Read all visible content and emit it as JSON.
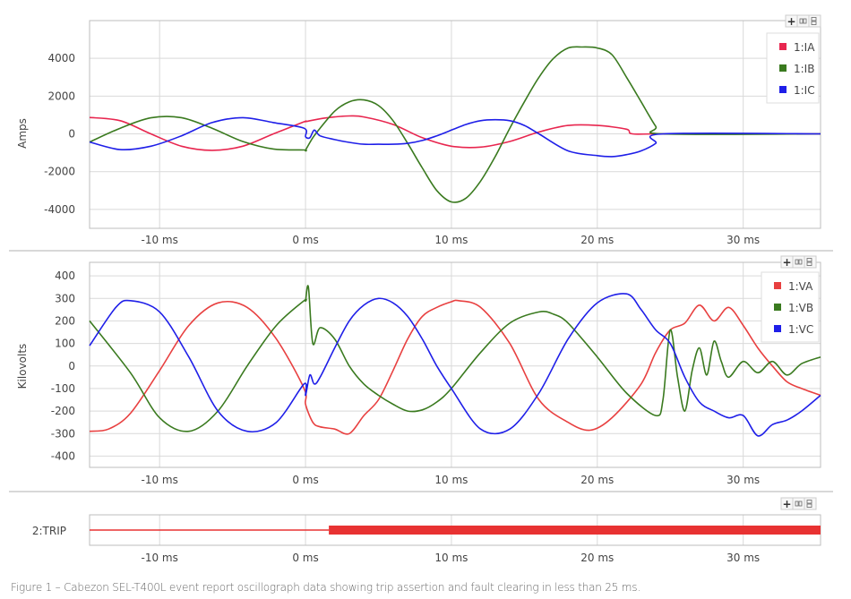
{
  "caption": "Figure 1 – Cabezon SEL-T400L event report oscillograph data showing trip assertion and fault clearing in less than 25 ms.",
  "toolbar": {
    "add_icon": "plus-icon",
    "side_by_side_icon": "columns-icon",
    "stacked_icon": "rows-icon",
    "add_label": "+"
  },
  "colors": {
    "phase_a": "#e8264f",
    "phase_b": "#3a7a1f",
    "phase_c": "#1f1fe8",
    "phase_a_v": "#e84040",
    "trip": "#e83232",
    "grid": "#d9d9d9",
    "border": "#bdbdbd"
  },
  "chart_data": [
    {
      "type": "line",
      "title": "",
      "ylabel": "Amps",
      "xlabel": "",
      "xlim": [
        -14.8,
        35.3
      ],
      "ylim": [
        -5000,
        6000
      ],
      "x_ticks": [
        "-10 ms",
        "0 ms",
        "10 ms",
        "20 ms",
        "30 ms"
      ],
      "x_tick_values": [
        -10,
        0,
        10,
        20,
        30
      ],
      "y_ticks": [
        "4000",
        "2000",
        "0",
        "-2000",
        "-4000"
      ],
      "y_tick_values": [
        4000,
        2000,
        0,
        -2000,
        -4000
      ],
      "grid": true,
      "legend_position": "top-right",
      "series": [
        {
          "name": "1:IA",
          "color": "#e8264f",
          "x": [
            -14.8,
            -12.7,
            -10.6,
            -8.5,
            -6.4,
            -4.3,
            -2.2,
            -0.1,
            0,
            1,
            2,
            3,
            4,
            6,
            8,
            10,
            12,
            14,
            16,
            18,
            20,
            22,
            22.4,
            24.5,
            35.3
          ],
          "y": [
            870,
            700,
            0,
            -650,
            -870,
            -650,
            0,
            640,
            650,
            800,
            900,
            950,
            900,
            500,
            -200,
            -650,
            -700,
            -400,
            100,
            450,
            450,
            250,
            0,
            0,
            0
          ]
        },
        {
          "name": "1:IB",
          "color": "#3a7a1f",
          "x": [
            -14.8,
            -12.7,
            -10.6,
            -8.5,
            -6.4,
            -4.3,
            -2.2,
            -0.1,
            0,
            0.5,
            1,
            2,
            3,
            4,
            5,
            6,
            7,
            8,
            9,
            10,
            11,
            12,
            13,
            14,
            15,
            16,
            17,
            18,
            19,
            20,
            21,
            22,
            23,
            24,
            24.5,
            35.3
          ],
          "y": [
            -430,
            300,
            850,
            860,
            300,
            -400,
            -800,
            -850,
            -850,
            -200,
            300,
            1200,
            1700,
            1800,
            1500,
            700,
            -500,
            -1800,
            -3000,
            -3600,
            -3400,
            -2500,
            -1200,
            300,
            1700,
            3000,
            4000,
            4550,
            4600,
            4550,
            4200,
            3000,
            1700,
            400,
            0,
            0
          ]
        },
        {
          "name": "1:IC",
          "color": "#1f1fe8",
          "x": [
            -14.8,
            -12.7,
            -10.6,
            -8.5,
            -6.4,
            -4.3,
            -2.2,
            -0.1,
            0,
            0.3,
            0.6,
            1,
            2,
            3,
            4,
            5,
            6,
            7,
            8,
            9,
            10,
            11,
            12,
            13,
            14,
            15,
            16,
            18,
            20,
            21,
            22,
            23,
            24,
            24.5,
            35.3
          ],
          "y": [
            -430,
            -830,
            -650,
            -100,
            600,
            860,
            600,
            300,
            -150,
            -200,
            200,
            -100,
            -300,
            -450,
            -550,
            -550,
            -550,
            -500,
            -350,
            -100,
            200,
            500,
            700,
            750,
            700,
            450,
            0,
            -900,
            -1150,
            -1200,
            -1100,
            -900,
            -500,
            0,
            0
          ]
        }
      ]
    },
    {
      "type": "line",
      "title": "",
      "ylabel": "Kilovolts",
      "xlabel": "",
      "xlim": [
        -14.8,
        35.3
      ],
      "ylim": [
        -450,
        460
      ],
      "x_ticks": [
        "-10 ms",
        "0 ms",
        "10 ms",
        "20 ms",
        "30 ms"
      ],
      "x_tick_values": [
        -10,
        0,
        10,
        20,
        30
      ],
      "y_ticks": [
        "400",
        "300",
        "200",
        "100",
        "0",
        "-100",
        "-200",
        "-300",
        "-400"
      ],
      "y_tick_values": [
        400,
        300,
        200,
        100,
        0,
        -100,
        -200,
        -300,
        -400
      ],
      "grid": true,
      "legend_position": "top-right",
      "series": [
        {
          "name": "1:VA",
          "color": "#e84040",
          "x": [
            -14.8,
            -13.5,
            -12,
            -10,
            -8,
            -6,
            -4,
            -2,
            -0.1,
            0,
            0.5,
            1,
            2,
            3,
            4,
            5,
            6,
            7,
            8,
            9,
            10,
            10.5,
            12,
            14,
            16,
            18,
            19.5,
            21,
            23,
            24,
            25,
            26,
            27,
            28,
            29,
            30,
            31,
            32,
            33,
            34,
            35.3
          ],
          "y": [
            -290,
            -280,
            -210,
            -20,
            180,
            280,
            260,
            120,
            -100,
            -170,
            -250,
            -270,
            -280,
            -300,
            -220,
            -150,
            -20,
            120,
            220,
            260,
            285,
            290,
            260,
            100,
            -150,
            -250,
            -285,
            -230,
            -80,
            60,
            160,
            190,
            270,
            200,
            260,
            180,
            80,
            0,
            -70,
            -100,
            -130
          ]
        },
        {
          "name": "1:VB",
          "color": "#3a7a1f",
          "x": [
            -14.8,
            -12,
            -10,
            -8,
            -6,
            -4,
            -2,
            -0.1,
            0,
            0.2,
            0.5,
            1,
            2,
            3,
            4,
            5,
            6,
            7,
            8,
            9,
            10,
            12,
            14,
            16,
            17,
            18,
            20,
            22,
            24,
            24.5,
            25,
            25.5,
            26,
            26.5,
            27,
            27.5,
            28,
            28.5,
            29,
            30,
            31,
            32,
            33,
            34,
            35.3
          ],
          "y": [
            200,
            -30,
            -230,
            -290,
            -200,
            0,
            180,
            290,
            290,
            350,
            100,
            170,
            120,
            0,
            -80,
            -130,
            -170,
            -200,
            -195,
            -160,
            -100,
            60,
            190,
            240,
            230,
            190,
            40,
            -120,
            -220,
            -150,
            160,
            -50,
            -200,
            -20,
            80,
            -40,
            110,
            20,
            -50,
            20,
            -30,
            20,
            -40,
            10,
            40
          ]
        },
        {
          "name": "1:VC",
          "color": "#1f1fe8",
          "x": [
            -14.8,
            -13,
            -12,
            -10,
            -8,
            -6,
            -4,
            -2,
            -0.1,
            0,
            0.3,
            0.6,
            1,
            2,
            3,
            4,
            5,
            6,
            7,
            8,
            9,
            10,
            12,
            14,
            16,
            18,
            20,
            22,
            23,
            24,
            25,
            26,
            27,
            28,
            29,
            30,
            31,
            32,
            33,
            34,
            35.3
          ],
          "y": [
            90,
            260,
            290,
            240,
            40,
            -200,
            -290,
            -250,
            -80,
            -130,
            -40,
            -80,
            -50,
            80,
            200,
            270,
            300,
            280,
            220,
            120,
            0,
            -100,
            -280,
            -280,
            -120,
            120,
            280,
            320,
            250,
            160,
            100,
            -50,
            -160,
            -200,
            -230,
            -220,
            -310,
            -260,
            -240,
            -200,
            -130
          ]
        }
      ]
    },
    {
      "type": "line",
      "title": "",
      "ylabel": "",
      "row_label": "2:TRIP",
      "xlim": [
        -14.8,
        35.3
      ],
      "x_ticks": [
        "-10 ms",
        "0 ms",
        "10 ms",
        "20 ms",
        "30 ms"
      ],
      "x_tick_values": [
        -10,
        0,
        10,
        20,
        30
      ],
      "series": [
        {
          "name": "2:TRIP",
          "color": "#e83232",
          "assert_ms": 1.6,
          "x": [
            -14.8,
            1.6,
            1.6,
            35.3
          ],
          "y": [
            0,
            0,
            1,
            1
          ]
        }
      ]
    }
  ]
}
